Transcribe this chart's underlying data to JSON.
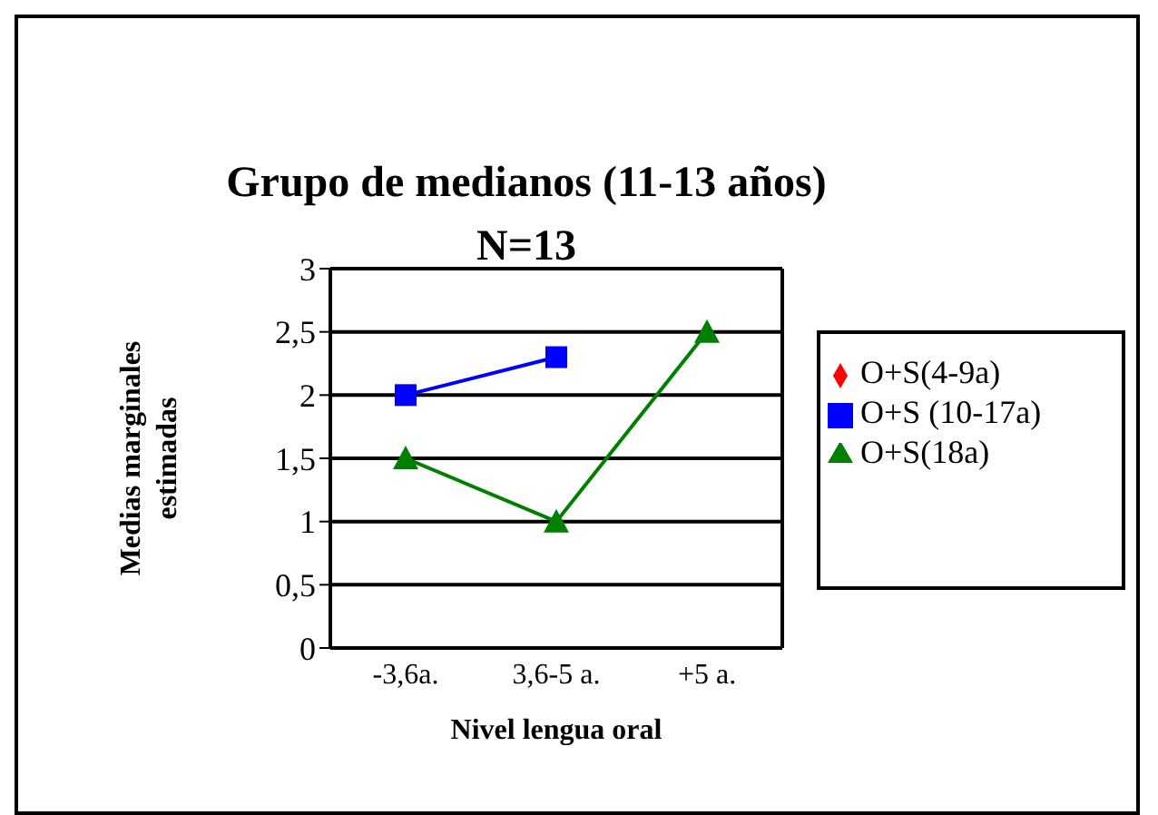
{
  "chart_data": {
    "type": "line",
    "title": "Grupo de medianos (11-13 años)",
    "subtitle": "N=13",
    "xlabel": "Nivel lengua oral",
    "ylabel": "Medias marginales estimadas",
    "categories": [
      "-3,6a.",
      "3,6-5 a.",
      "+5 a."
    ],
    "series": [
      {
        "name": "O+S(4-9a)",
        "color": "#ff0000",
        "marker": "diamond",
        "values": [
          null,
          null,
          null
        ]
      },
      {
        "name": "O+S (10-17a)",
        "color": "#0000ff",
        "marker": "square",
        "values": [
          2,
          2.3,
          null
        ]
      },
      {
        "name": "O+S(18a)",
        "color": "#008000",
        "marker": "triangle",
        "values": [
          1.5,
          1,
          2.5
        ]
      }
    ],
    "ylim": [
      0,
      3
    ],
    "yticks": [
      0,
      {
        "value": 0.5,
        "label": "0,5"
      },
      1,
      {
        "value": 1.5,
        "label": "1,5"
      },
      2,
      {
        "value": 2.5,
        "label": "2,5"
      },
      3
    ],
    "grid": "y",
    "legend": "right"
  }
}
